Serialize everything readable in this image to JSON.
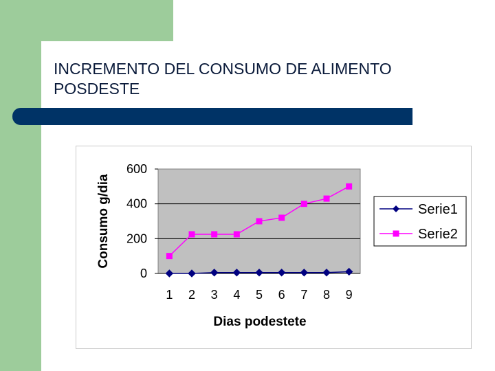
{
  "slide": {
    "title_line1": "INCREMENTO DEL CONSUMO DE ALIMENTO",
    "title_line2": "POSDESTE"
  },
  "colors": {
    "left_band": "#9dcc9b",
    "accent_bar": "#003366",
    "plot_bg": "#c0c0c0",
    "serie1": "#000080",
    "serie2": "#ff00ff"
  },
  "chart_data": {
    "type": "line",
    "x": [
      1,
      2,
      3,
      4,
      5,
      6,
      7,
      8,
      9
    ],
    "series": [
      {
        "name": "Serie1",
        "values": [
          0,
          0,
          5,
          5,
          5,
          5,
          5,
          5,
          10
        ],
        "color": "#000080",
        "marker": "diamond"
      },
      {
        "name": "Serie2",
        "values": [
          100,
          225,
          225,
          225,
          300,
          320,
          400,
          430,
          500
        ],
        "color": "#ff00ff",
        "marker": "square"
      }
    ],
    "title": "",
    "xlabel": "Dias podestete",
    "ylabel": "Consumo g/dia",
    "ylim": [
      0,
      600
    ],
    "yticks": [
      0,
      200,
      400,
      600
    ],
    "grid": true,
    "legend": "right"
  }
}
